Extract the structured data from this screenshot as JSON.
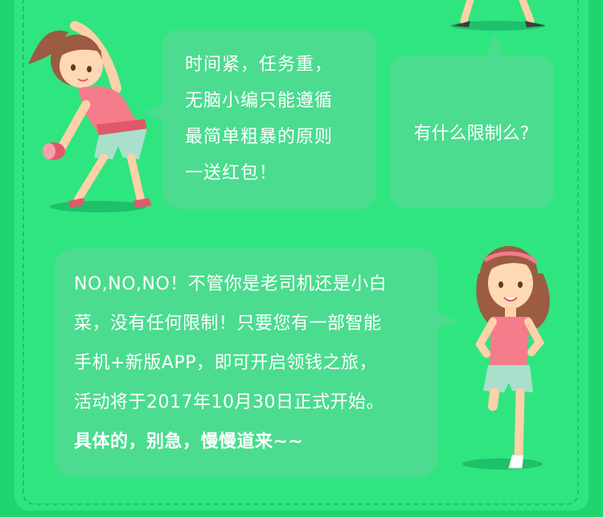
{
  "bubbles": {
    "left_top": {
      "lines": [
        "时间紧，任务重，",
        "无脑小编只能遵循",
        "最简单粗暴的原则",
        "一送红包！"
      ]
    },
    "right_top": {
      "text": "有什么限制么?"
    },
    "bottom": {
      "lines": [
        "NO,NO,NO！不管你是老司机还是小白",
        "菜，没有任何限制！只要您有一部智能",
        "手机+新版APP，即可开启领钱之旅，",
        "活动将于2017年10月30日正式开始。",
        "具体的，别急，慢慢道来~~"
      ]
    }
  },
  "colors": {
    "background": "#20d56f",
    "panel": "#2fe57f",
    "bubble": "#4bdc8f",
    "text": "#ffffff"
  }
}
